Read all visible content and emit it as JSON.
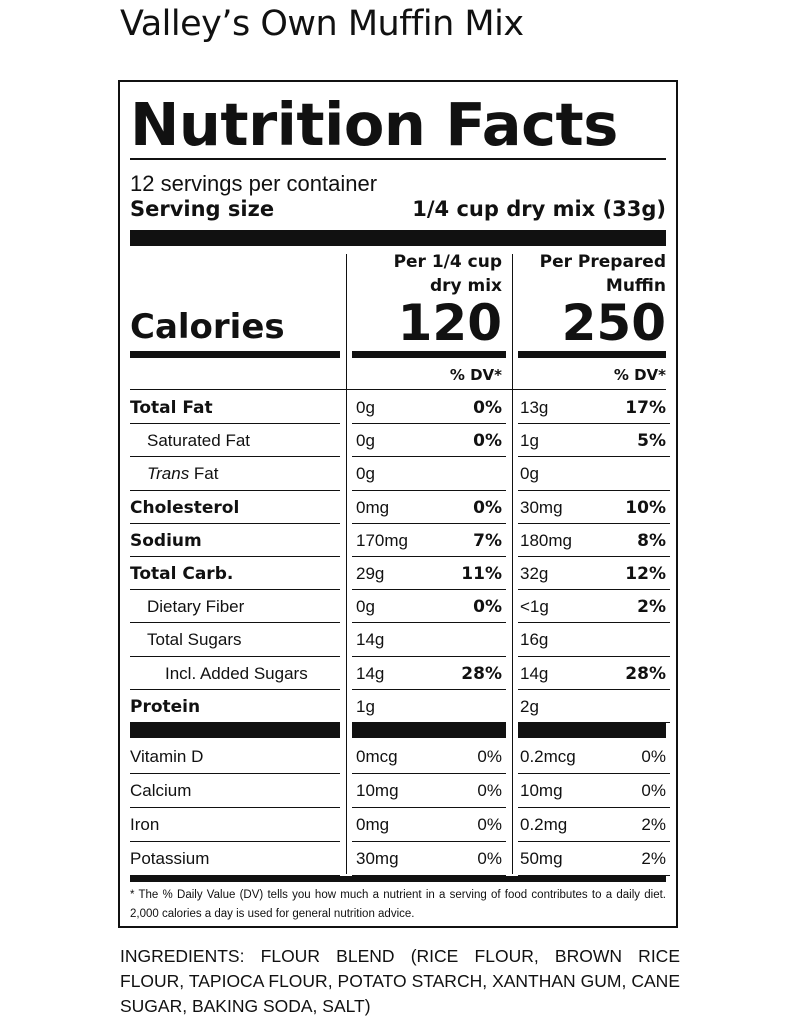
{
  "product_name": "Valley’s Own Muffin Mix",
  "title": "Nutrition Facts",
  "servings_per_container": "12 servings per container",
  "serving_size_label": "Serving size",
  "serving_size_value": "1/4 cup dry mix (33g)",
  "columns": {
    "col1_line1": "Per 1/4 cup",
    "col1_line2": "dry mix",
    "col2_line1": "Per Prepared",
    "col2_line2": "Muffin"
  },
  "calories": {
    "label": "Calories",
    "col1": "120",
    "col2": "250"
  },
  "dv_header": "% DV*",
  "nutrients": [
    {
      "name": "Total Fat",
      "style": "bold",
      "amt1": "0g",
      "dv1": "0%",
      "amt2": "13g",
      "dv2": "17%"
    },
    {
      "name": "Saturated Fat",
      "style": "i1",
      "amt1": "0g",
      "dv1": "0%",
      "amt2": "1g",
      "dv2": "5%"
    },
    {
      "name": "Trans Fat",
      "style": "i1",
      "amt1": "0g",
      "dv1": "",
      "amt2": "0g",
      "dv2": ""
    },
    {
      "name": "Cholesterol",
      "style": "bold",
      "amt1": "0mg",
      "dv1": "0%",
      "amt2": "30mg",
      "dv2": "10%"
    },
    {
      "name": "Sodium",
      "style": "bold",
      "amt1": "170mg",
      "dv1": "7%",
      "amt2": "180mg",
      "dv2": "8%"
    },
    {
      "name": "Total Carb.",
      "style": "bold",
      "amt1": "29g",
      "dv1": "11%",
      "amt2": "32g",
      "dv2": "12%"
    },
    {
      "name": "Dietary Fiber",
      "style": "i1",
      "amt1": "0g",
      "dv1": "0%",
      "amt2": "<1g",
      "dv2": "2%"
    },
    {
      "name": "Total Sugars",
      "style": "i1",
      "amt1": "14g",
      "dv1": "",
      "amt2": "16g",
      "dv2": ""
    },
    {
      "name": "Incl. Added Sugars",
      "style": "i2",
      "amt1": "14g",
      "dv1": "28%",
      "amt2": "14g",
      "dv2": "28%"
    },
    {
      "name": "Protein",
      "style": "bold",
      "amt1": "1g",
      "dv1": "",
      "amt2": "2g",
      "dv2": ""
    }
  ],
  "vitamins": [
    {
      "name": "Vitamin D",
      "amt1": "0mcg",
      "dv1": "0%",
      "amt2": "0.2mcg",
      "dv2": "0%"
    },
    {
      "name": "Calcium",
      "amt1": "10mg",
      "dv1": "0%",
      "amt2": "10mg",
      "dv2": "0%"
    },
    {
      "name": "Iron",
      "amt1": "0mg",
      "dv1": "0%",
      "amt2": "0.2mg",
      "dv2": "2%"
    },
    {
      "name": "Potassium",
      "amt1": "30mg",
      "dv1": "0%",
      "amt2": "50mg",
      "dv2": "2%"
    }
  ],
  "footnote": "* The % Daily Value (DV) tells you how much a nutrient in a serving of food contributes to a daily diet. 2,000 calories a day is used for general nutrition advice.",
  "ingredients": "INGREDIENTS: FLOUR BLEND (RICE FLOUR, BROWN RICE FLOUR, TAPIOCA FLOUR, POTATO STARCH, XANTHAN GUM, CANE SUGAR, BAKING SODA, SALT)"
}
